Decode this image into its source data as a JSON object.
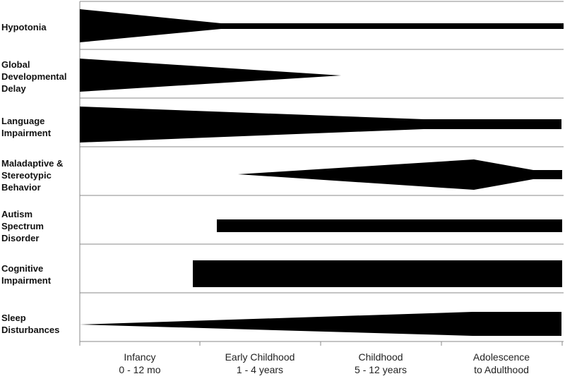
{
  "rows": [
    {
      "label": "Hypotonia"
    },
    {
      "label": "Global\nDevelopmental\nDelay"
    },
    {
      "label": "Language\nImpairment"
    },
    {
      "label": "Maladaptive &\nStereotypic\nBehavior"
    },
    {
      "label": "Autism\nSpectrum\nDisorder"
    },
    {
      "label": "Cognitive\nImpairment"
    },
    {
      "label": "Sleep\nDisturbances"
    }
  ],
  "stages": [
    {
      "label": "Infancy\n0 - 12 mo"
    },
    {
      "label": "Early Childhood\n1 - 4 years"
    },
    {
      "label": "Childhood\n5 - 12 years"
    },
    {
      "label": "Adolescence\nto Adulthood"
    }
  ],
  "colors": {
    "bar": "#000000",
    "rule": "#8a8a8a"
  }
}
